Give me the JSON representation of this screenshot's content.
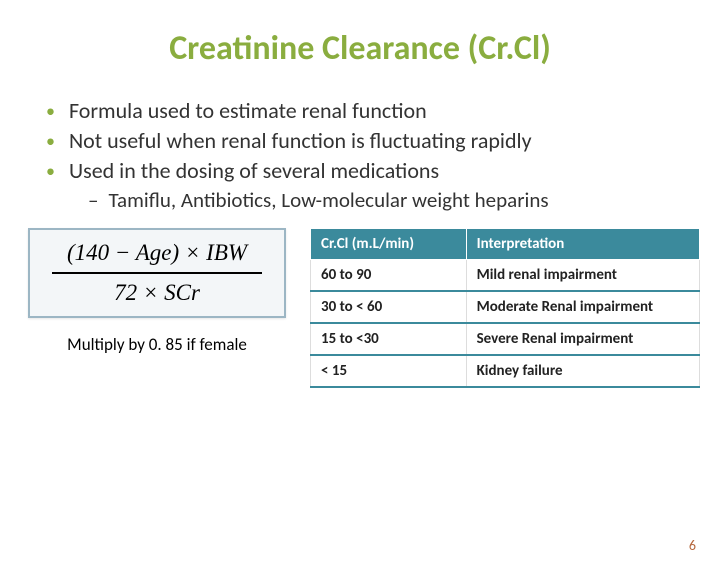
{
  "title": {
    "text": "Creatinine Clearance (Cr.Cl)",
    "color": "#8aad3f"
  },
  "bullets": [
    "Formula used to estimate renal function",
    "Not useful when renal function is fluctuating rapidly",
    "Used in the dosing of several medications"
  ],
  "sub_bullet": "Tamiflu, Antibiotics, Low-molecular weight heparins",
  "formula": {
    "numerator": "(140 − Age) × IBW",
    "denominator": "72 × SCr",
    "note": "Multiply by 0. 85 if female"
  },
  "table": {
    "header_bg": "#3b8a9c",
    "headers": [
      "Cr.Cl (m.L/min)",
      "Interpretation"
    ],
    "rows": [
      [
        "60 to 90",
        "Mild renal impairment"
      ],
      [
        "30 to < 60",
        "Moderate Renal impairment"
      ],
      [
        "15 to <30",
        "Severe Renal impairment"
      ],
      [
        "< 15",
        "Kidney failure"
      ]
    ]
  },
  "page_number": "6"
}
